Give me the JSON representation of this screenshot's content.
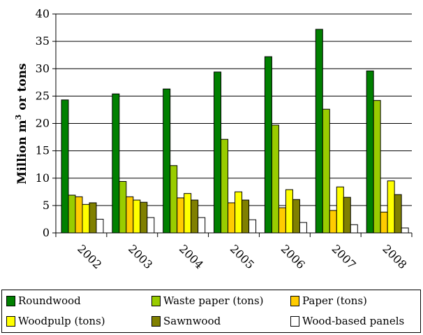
{
  "chart_data": {
    "type": "bar",
    "title": "",
    "ylabel_main": "Million m",
    "ylabel_sup": "3",
    "ylabel_rest": " or tons",
    "xlabel": "",
    "ylim": [
      0,
      40
    ],
    "yticks": [
      0,
      5,
      10,
      15,
      20,
      25,
      30,
      35,
      40
    ],
    "ytick_labels": [
      "0",
      "5",
      "10",
      "15",
      "20",
      "25",
      "30",
      "35",
      "40"
    ],
    "categories": [
      "2002",
      "2003",
      "2004",
      "2005",
      "2006",
      "2007",
      "2008"
    ],
    "series": [
      {
        "name": "Roundwood",
        "color": "#008000",
        "values": [
          24.3,
          25.4,
          26.3,
          29.4,
          32.2,
          37.2,
          29.6
        ]
      },
      {
        "name": "Waste paper (tons)",
        "color": "#99CC00",
        "values": [
          6.9,
          9.4,
          12.3,
          17.1,
          19.7,
          22.6,
          24.2
        ]
      },
      {
        "name": "Paper (tons)",
        "color": "#FFCC00",
        "values": [
          6.6,
          6.6,
          6.4,
          5.5,
          4.6,
          4.1,
          3.8
        ]
      },
      {
        "name": "Woodpulp (tons)",
        "color": "#FFFF00",
        "values": [
          5.2,
          6.0,
          7.2,
          7.5,
          7.9,
          8.4,
          9.5
        ]
      },
      {
        "name": "Sawnwood",
        "color": "#808000",
        "values": [
          5.5,
          5.6,
          6.0,
          6.0,
          6.1,
          6.5,
          7.0
        ]
      },
      {
        "name": "Wood-based panels",
        "color": "#FFFFFF",
        "values": [
          2.5,
          2.8,
          2.8,
          2.4,
          1.9,
          1.5,
          0.9
        ]
      }
    ],
    "grid": true,
    "legend_position": "bottom"
  }
}
